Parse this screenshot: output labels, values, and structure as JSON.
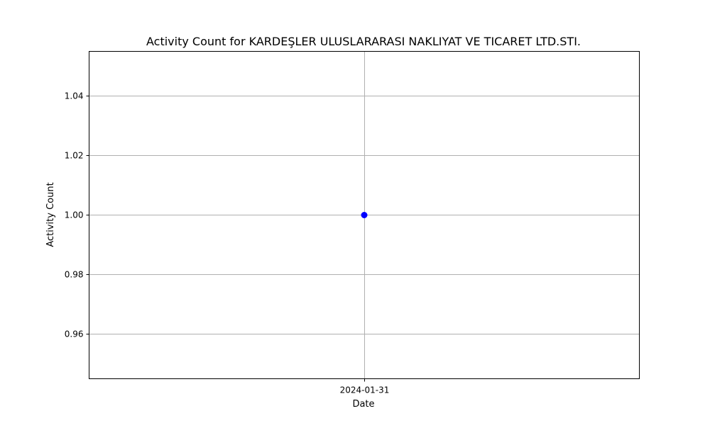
{
  "chart_data": {
    "type": "line",
    "title": "Activity Count for KARDEŞLER ULUSLARARASI NAKLIYAT VE TICARET LTD.STI.",
    "xlabel": "Date",
    "ylabel": "Activity Count",
    "x": [
      "2024-01-31"
    ],
    "series": [
      {
        "values": [
          1.0
        ],
        "color": "#0000ff",
        "marker": "circle"
      }
    ],
    "ylim": [
      0.945,
      1.055
    ],
    "y_ticks": [
      0.96,
      0.98,
      1.0,
      1.02,
      1.04
    ],
    "y_tick_labels": [
      "0.96",
      "0.98",
      "1.00",
      "1.02",
      "1.04"
    ],
    "x_tick_labels": [
      "2024-01-31"
    ],
    "grid": true,
    "grid_color": "#b0b0b0",
    "axis_color": "#000000",
    "legend": "none"
  }
}
